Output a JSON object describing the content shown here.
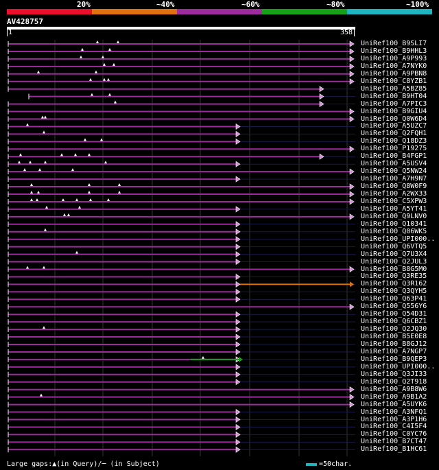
{
  "legend": {
    "labels": [
      "20%",
      "~40%",
      "~60%",
      "~80%",
      "~100%"
    ],
    "colors": [
      "#e8102c",
      "#e07010",
      "#9c2b9c",
      "#18a018",
      "#1eb4c0"
    ]
  },
  "query": {
    "name": "AV428757",
    "start": "1",
    "end": "358"
  },
  "hits": [
    {
      "label": "UniRef100_B9SLI7",
      "end": "c"
    },
    {
      "label": "UniRef100_B9HHL3",
      "end": "c"
    },
    {
      "label": "UniRef100_A9P993",
      "end": "c"
    },
    {
      "label": "UniRef100_A7NYK0",
      "end": "c"
    },
    {
      "label": "UniRef100_A9PBN8",
      "end": "c"
    },
    {
      "label": "UniRef100_C8YZB1",
      "end": "c"
    },
    {
      "label": "UniRef100_A5BZ85",
      "end": "b"
    },
    {
      "label": "UniRef100_B9HT04",
      "end": "b"
    },
    {
      "label": "UniRef100_A7PIC3",
      "end": "b"
    },
    {
      "label": "UniRef100_B9GIU4",
      "end": "c"
    },
    {
      "label": "UniRef100_Q0W6D4",
      "end": "c"
    },
    {
      "label": "UniRef100_A5UZC7",
      "end": "a"
    },
    {
      "label": "UniRef100_Q2FQH1",
      "end": "a"
    },
    {
      "label": "UniRef100_Q18DZ3",
      "end": "a"
    },
    {
      "label": "UniRef100_P19275",
      "end": "c"
    },
    {
      "label": "UniRef100_B4FGP1",
      "end": "b"
    },
    {
      "label": "UniRef100_A5USV4",
      "end": "a"
    },
    {
      "label": "UniRef100_Q5NW24",
      "end": "c"
    },
    {
      "label": "UniRef100_A7H9N7",
      "end": "a"
    },
    {
      "label": "UniRef100_Q8W0F9",
      "end": "c"
    },
    {
      "label": "UniRef100_A2WX33",
      "end": "c"
    },
    {
      "label": "UniRef100_C5XPW3",
      "end": "c"
    },
    {
      "label": "UniRef100_A5YT41",
      "end": "a"
    },
    {
      "label": "UniRef100_Q9LNV0",
      "end": "c"
    },
    {
      "label": "UniRef100_Q10341",
      "end": "a"
    },
    {
      "label": "UniRef100_Q06WK5",
      "end": "a"
    },
    {
      "label": "UniRef100_UPI000..",
      "end": "a"
    },
    {
      "label": "UniRef100_Q6VTQ5",
      "end": "a"
    },
    {
      "label": "UniRef100_Q7U3X4",
      "end": "a"
    },
    {
      "label": "UniRef100_Q2JUL3",
      "end": "a"
    },
    {
      "label": "UniRef100_B8G5M0",
      "end": "c"
    },
    {
      "label": "UniRef100_Q3RE35",
      "end": "a"
    },
    {
      "label": "UniRef100_Q3R162",
      "end": "a"
    },
    {
      "label": "UniRef100_Q3QYH5",
      "end": "a"
    },
    {
      "label": "UniRef100_Q63P41",
      "end": "a"
    },
    {
      "label": "UniRef100_Q556Y6",
      "end": "c"
    },
    {
      "label": "UniRef100_Q54D31",
      "end": "a"
    },
    {
      "label": "UniRef100_Q6CBZ1",
      "end": "a"
    },
    {
      "label": "UniRef100_Q2JQ30",
      "end": "a"
    },
    {
      "label": "UniRef100_B5E0E8",
      "end": "a"
    },
    {
      "label": "UniRef100_B8GJ12",
      "end": "a"
    },
    {
      "label": "UniRef100_A7NGP7",
      "end": "a"
    },
    {
      "label": "UniRef100_B9QEP3",
      "end": "a"
    },
    {
      "label": "UniRef100_UPI000..",
      "end": "a"
    },
    {
      "label": "UniRef100_Q3JI33",
      "end": "a"
    },
    {
      "label": "UniRef100_Q2T918",
      "end": "a"
    },
    {
      "label": "UniRef100_A9B8W6",
      "end": "c"
    },
    {
      "label": "UniRef100_A9B1A2",
      "end": "c"
    },
    {
      "label": "UniRef100_A5UYK6",
      "end": "c"
    },
    {
      "label": "UniRef100_A3NFQ1",
      "end": "a"
    },
    {
      "label": "UniRef100_A3P1H6",
      "end": "a"
    },
    {
      "label": "UniRef100_C4I5F4",
      "end": "a"
    },
    {
      "label": "UniRef100_C0YC76",
      "end": "a"
    },
    {
      "label": "UniRef100_B7CT47",
      "end": "a"
    },
    {
      "label": "UniRef100_B1HC61",
      "end": "a"
    }
  ],
  "footer": {
    "note": "Large gaps:▲(in Query)/─ (in Subject)",
    "scale": "=50char."
  }
}
